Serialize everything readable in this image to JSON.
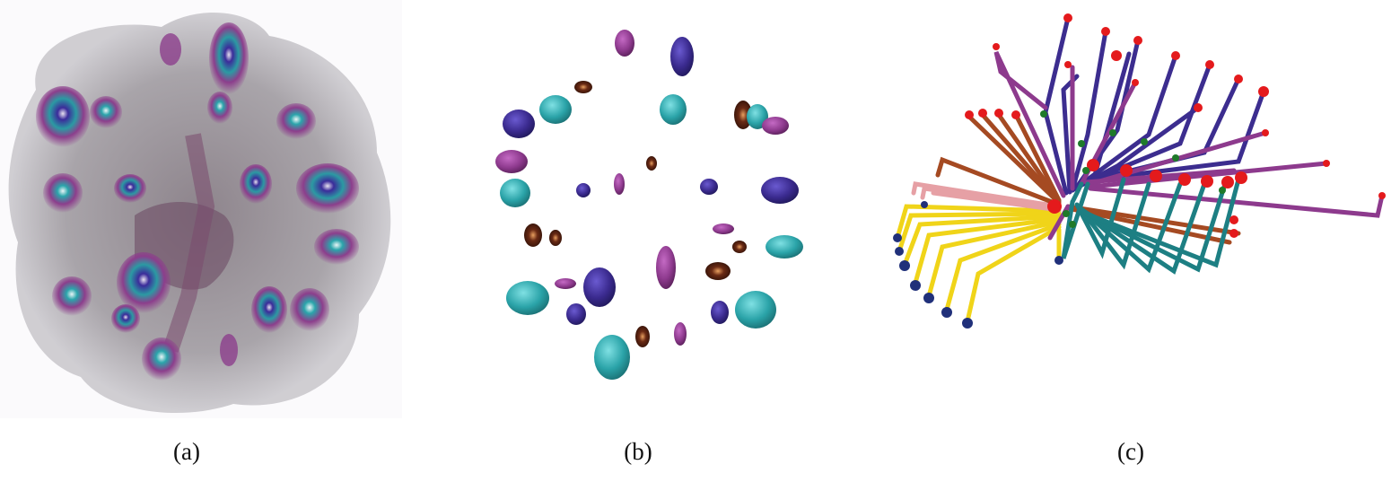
{
  "figure": {
    "panels": [
      {
        "caption": "(a)",
        "content": "volume-rendering"
      },
      {
        "caption": "(b)",
        "content": "isosurface-features"
      },
      {
        "caption": "(c)",
        "content": "feature-tree-graph"
      }
    ]
  },
  "colors": {
    "background_panel": "#fbfafc",
    "fog_gray": "#8f8a90",
    "magenta": "#8e3a8e",
    "blue": "#3a2a8e",
    "teal": "#2aa3a8",
    "brown": "#6a2a14",
    "red_node": "#e41a1c",
    "green_node": "#1f7a2a",
    "navy_node": "#20307a",
    "yellow_edge": "#f0d419",
    "teal_edge": "#1d7f83",
    "purple_edge": "#3c2d8f",
    "pink_edge": "#e6a0a5",
    "brown_edge": "#a54a22",
    "magenta_edge": "#8d3a8d"
  }
}
